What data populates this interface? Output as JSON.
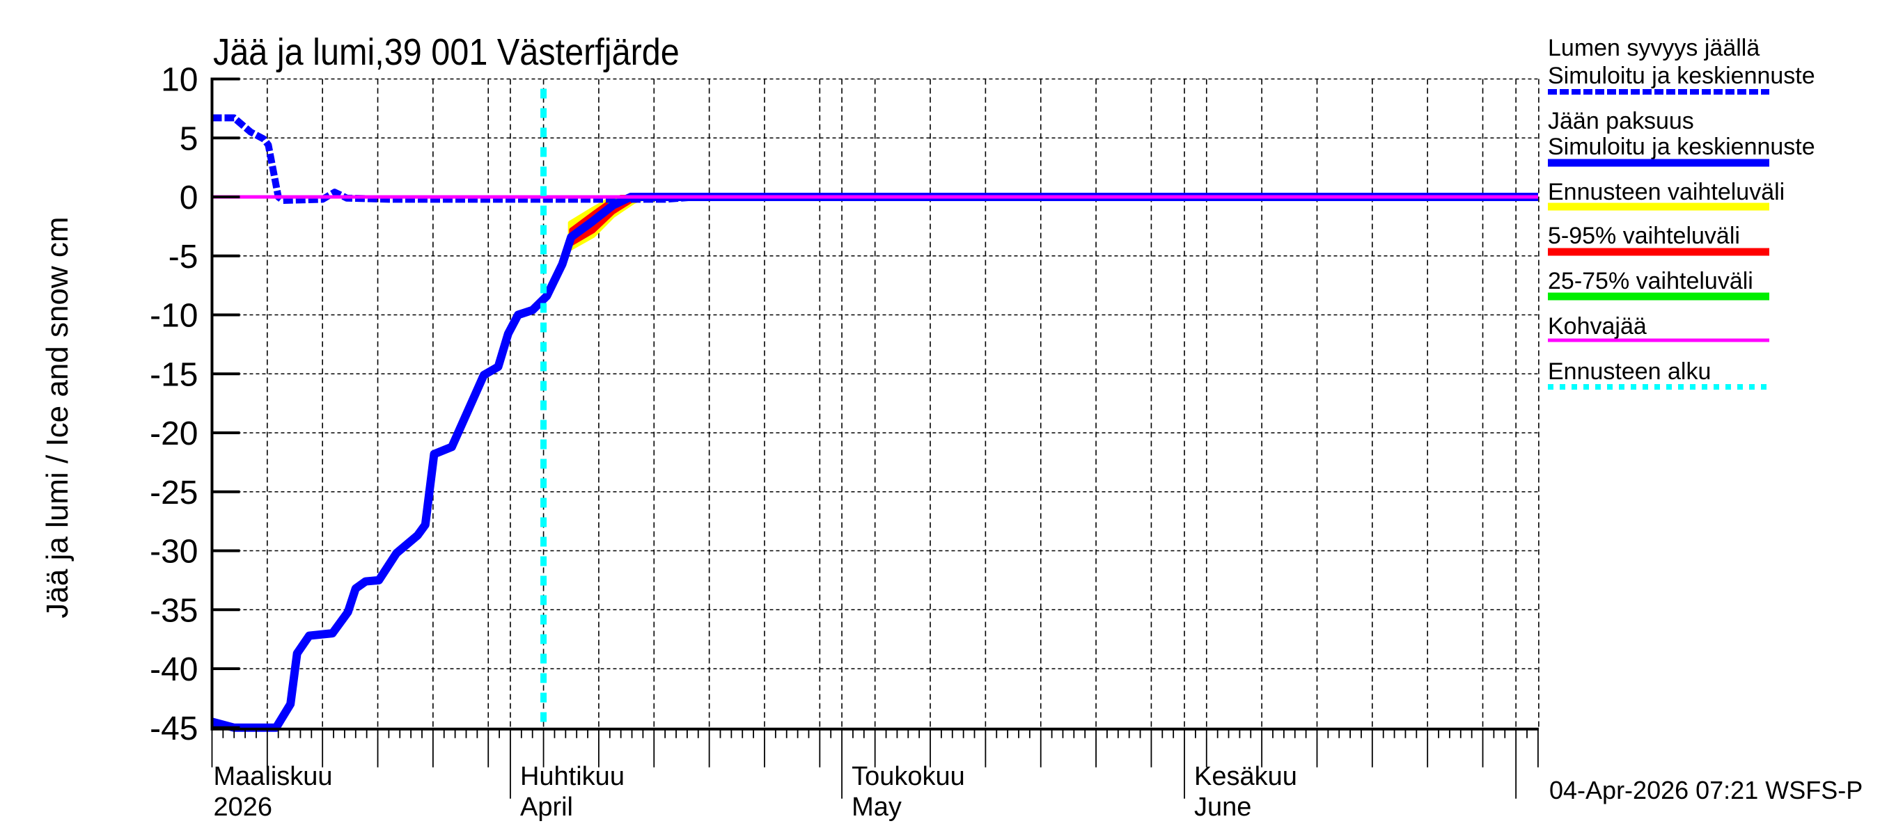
{
  "title": "Jää ja lumi,39 001 Västerfjärde",
  "footer": "04-Apr-2026 07:21 WSFS-P",
  "colors": {
    "snow": "#0000ff",
    "ice": "#0000ff",
    "range_full": "#ffff00",
    "range_5_95": "#ff0000",
    "range_25_75": "#00ee00",
    "slush": "#ff00ff",
    "forecast_start": "#00ffff",
    "grid": "#000000",
    "axis": "#000000"
  },
  "legend": [
    {
      "line1": "Lumen syvyys jäällä",
      "line2": "Simuloitu ja keskiennuste",
      "key": "snow",
      "style": "dashed"
    },
    {
      "line1": "Jään paksuus",
      "line2": "Simuloitu ja keskiennuste",
      "key": "ice",
      "style": "solid"
    },
    {
      "line1": "Ennusteen vaihteluväli",
      "key": "range_full",
      "style": "solid"
    },
    {
      "line1": "5-95% vaihteluväli",
      "key": "range_5_95",
      "style": "solid"
    },
    {
      "line1": "25-75% vaihteluväli",
      "key": "range_25_75",
      "style": "solid"
    },
    {
      "line1": "Kohvajää",
      "key": "slush",
      "style": "thin"
    },
    {
      "line1": "Ennusteen alku",
      "key": "forecast_start",
      "style": "dotted"
    }
  ],
  "chart_data": {
    "type": "line",
    "title": "Jää ja lumi,39 001 Västerfjärde",
    "xlabel": "",
    "ylabel": "Jää ja lumi / Ice and snow    cm",
    "ylim": [
      -45,
      10
    ],
    "yticks": [
      10,
      5,
      0,
      -5,
      -10,
      -15,
      -20,
      -25,
      -30,
      -35,
      -40,
      -45
    ],
    "x_unit": "days since 2026-03-01",
    "xlim": [
      4,
      124
    ],
    "grid": true,
    "legend_position": "right",
    "month_labels": [
      {
        "day": 4,
        "line1": "Maaliskuu",
        "line2": "2026"
      },
      {
        "day": 31,
        "line1": "Huhtikuu",
        "line2": "April"
      },
      {
        "day": 61,
        "line1": "Toukokuu",
        "line2": "May"
      },
      {
        "day": 92,
        "line1": "Kesäkuu",
        "line2": "June"
      }
    ],
    "month_boundaries": [
      31,
      61,
      92,
      122
    ],
    "forecast_start_day": 34,
    "series": [
      {
        "name": "Lumen syvyys jäällä – Simuloitu ja keskiennuste",
        "key": "snow",
        "style": "dashed",
        "points": [
          [
            4,
            6.7
          ],
          [
            6,
            6.7
          ],
          [
            7.5,
            5.5
          ],
          [
            8.7,
            4.9
          ],
          [
            9.1,
            4.4
          ],
          [
            10,
            0
          ],
          [
            10.4,
            -0.3
          ],
          [
            14,
            -0.2
          ],
          [
            15.1,
            0.4
          ],
          [
            16.2,
            -0.1
          ],
          [
            20,
            -0.2
          ],
          [
            40,
            -0.2
          ],
          [
            45,
            -0.2
          ],
          [
            48,
            0
          ],
          [
            124,
            0
          ]
        ]
      },
      {
        "name": "Jään paksuus – Simuloitu ja keskiennuste",
        "key": "ice",
        "style": "solid",
        "points": [
          [
            4,
            -44.5
          ],
          [
            6,
            -45
          ],
          [
            9.8,
            -45
          ],
          [
            11.1,
            -43
          ],
          [
            11.7,
            -38.7
          ],
          [
            12.8,
            -37.2
          ],
          [
            14.9,
            -37
          ],
          [
            16.3,
            -35.2
          ],
          [
            17,
            -33.2
          ],
          [
            17.9,
            -32.6
          ],
          [
            19.1,
            -32.5
          ],
          [
            20.7,
            -30.2
          ],
          [
            22.6,
            -28.7
          ],
          [
            23.3,
            -27.8
          ],
          [
            24.1,
            -21.8
          ],
          [
            25.7,
            -21.2
          ],
          [
            28.6,
            -15.1
          ],
          [
            29.9,
            -14.4
          ],
          [
            30.8,
            -11.6
          ],
          [
            31.7,
            -10
          ],
          [
            33,
            -9.6
          ],
          [
            34.3,
            -8.4
          ],
          [
            35.7,
            -5.7
          ],
          [
            36.5,
            -3.4
          ],
          [
            38.4,
            -2.1
          ],
          [
            40.3,
            -0.7
          ],
          [
            41.9,
            0
          ],
          [
            124,
            0
          ]
        ]
      },
      {
        "name": "Kohvajää",
        "key": "slush",
        "style": "thin",
        "points": [
          [
            4,
            0
          ],
          [
            124,
            0
          ]
        ]
      }
    ],
    "bands": [
      {
        "name": "Ennusteen vaihteluväli",
        "key": "range_full",
        "upper": [
          [
            36.4,
            -2.2
          ],
          [
            38.5,
            -1.0
          ],
          [
            40,
            -0.2
          ],
          [
            41,
            0
          ]
        ],
        "lower": [
          [
            36.4,
            -4.4
          ],
          [
            38.5,
            -3.3
          ],
          [
            40.3,
            -1.6
          ],
          [
            42.2,
            -0.4
          ],
          [
            43.5,
            0
          ]
        ]
      },
      {
        "name": "5-95% vaihteluväli",
        "key": "range_5_95",
        "upper": [
          [
            36.5,
            -2.8
          ],
          [
            38.5,
            -1.4
          ],
          [
            40,
            -0.4
          ],
          [
            41,
            0
          ]
        ],
        "lower": [
          [
            36.5,
            -4.0
          ],
          [
            38.5,
            -2.9
          ],
          [
            40.3,
            -1.3
          ],
          [
            42,
            -0.3
          ],
          [
            43,
            0
          ]
        ]
      },
      {
        "name": "25-75% vaihteluväli",
        "key": "range_25_75",
        "upper": [
          [
            40,
            -0.6
          ],
          [
            41,
            -0.1
          ]
        ],
        "lower": [
          [
            40,
            -0.8
          ],
          [
            41,
            -0.2
          ]
        ]
      }
    ]
  }
}
